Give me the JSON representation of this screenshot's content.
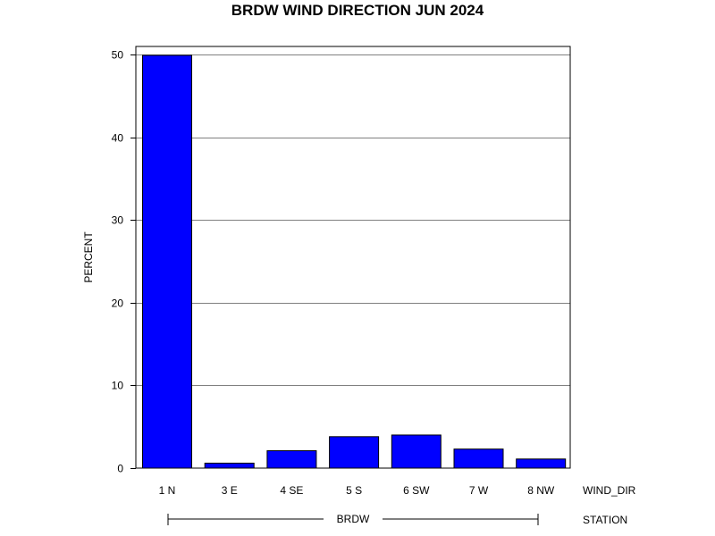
{
  "chart_data": {
    "type": "bar",
    "title": "BRDW WIND DIRECTION JUN 2024",
    "ylabel": "PERCENT",
    "xlabel": "WIND_DIR",
    "group_axis_label": "STATION",
    "group_label": "BRDW",
    "categories": [
      "1 N",
      "3 E",
      "4 SE",
      "5 S",
      "6 SW",
      "7 W",
      "8 NW"
    ],
    "values": [
      49.9,
      0.6,
      2.1,
      3.8,
      4.0,
      2.3,
      1.1
    ],
    "ylim": [
      0,
      51
    ],
    "yticks": [
      0,
      10,
      20,
      30,
      40,
      50
    ],
    "grid": true,
    "bar_color": "#0000ff"
  }
}
